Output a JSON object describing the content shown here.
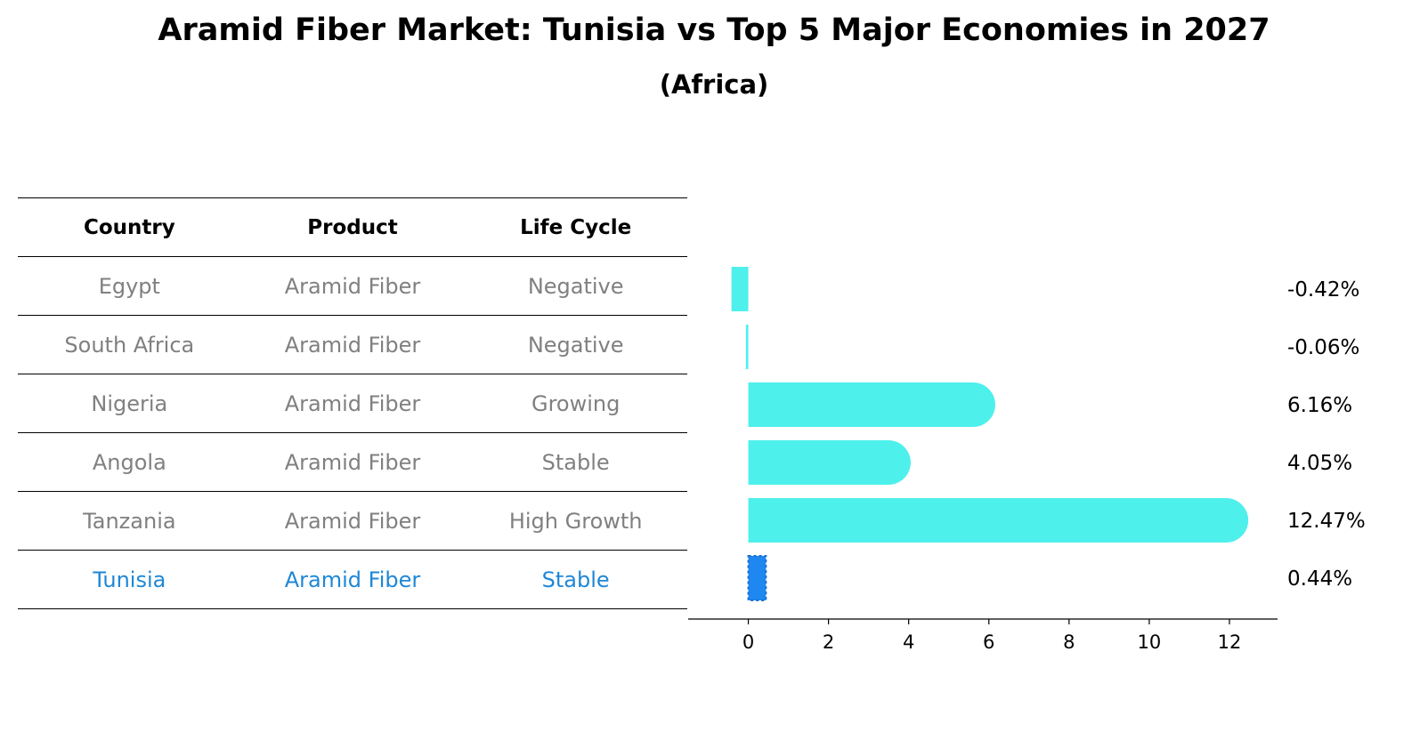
{
  "title": "Aramid Fiber Market: Tunisia vs Top 5 Major Economies in 2027",
  "subtitle": "(Africa)",
  "table": {
    "headers": [
      "Country",
      "Product",
      "Life Cycle"
    ],
    "rows": [
      {
        "country": "Egypt",
        "product": "Aramid Fiber",
        "life_cycle": "Negative"
      },
      {
        "country": "South Africa",
        "product": "Aramid Fiber",
        "life_cycle": "Negative"
      },
      {
        "country": "Nigeria",
        "product": "Aramid Fiber",
        "life_cycle": "Growing"
      },
      {
        "country": "Angola",
        "product": "Aramid Fiber",
        "life_cycle": "Stable"
      },
      {
        "country": "Tanzania",
        "product": "Aramid Fiber",
        "life_cycle": "High Growth"
      },
      {
        "country": "Tunisia",
        "product": "Aramid Fiber",
        "life_cycle": "Stable"
      }
    ]
  },
  "chart_data": {
    "type": "bar",
    "orientation": "horizontal",
    "categories": [
      "Egypt",
      "South Africa",
      "Nigeria",
      "Angola",
      "Tanzania",
      "Tunisia"
    ],
    "values": [
      -0.42,
      -0.06,
      6.16,
      4.05,
      12.47,
      0.44
    ],
    "value_labels": [
      "-0.42%",
      "-0.06%",
      "6.16%",
      "4.05%",
      "12.47%",
      "0.44%"
    ],
    "highlight": "Tunisia",
    "xlim": [
      -1.1,
      13.2
    ],
    "xticks": [
      0,
      2,
      4,
      6,
      8,
      10,
      12
    ],
    "colors": {
      "bar": "#4ef0ec",
      "highlight": "#1e88f0",
      "table_highlight": "#1f87d6",
      "table_text": "#808080"
    }
  }
}
